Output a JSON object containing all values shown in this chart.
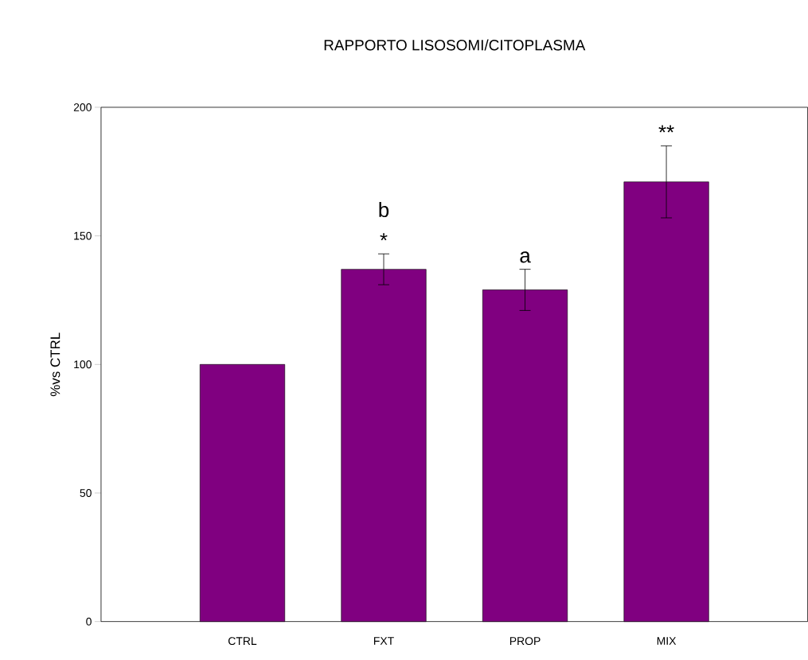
{
  "chart_data": {
    "type": "bar",
    "title": "RAPPORTO LISOSOMI/CITOPLASMA",
    "ylabel": "%vs CTRL",
    "categories": [
      "CTRL",
      "FXT",
      "PROP",
      "MIX"
    ],
    "values": [
      100,
      137,
      129,
      171
    ],
    "errors": [
      null,
      6,
      8,
      14
    ],
    "color": "#800080",
    "ylim": [
      0,
      200
    ],
    "yticks": [
      0,
      50,
      100,
      150,
      200
    ],
    "annotations": [
      "*",
      "b",
      "a",
      "**"
    ]
  }
}
